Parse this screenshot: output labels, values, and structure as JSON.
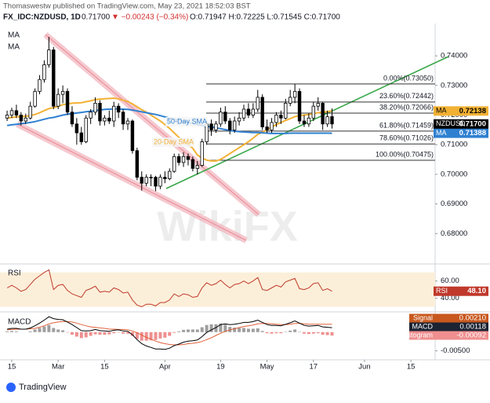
{
  "header": {
    "author": "Thomaswestw published on TradingView.com, May 23, 2021 18:52:03 BST",
    "symbol": "FX_IDC:NZDUSD, 1D",
    "last": "0.71700",
    "change": "▼ −0.00243 (−0.34%)",
    "ohlc_text": "O:0.71947  H:0.72225  L:0.71545  C:0.71700"
  },
  "footer": "TradingView",
  "watermark": "WikiFX",
  "chart_data": [
    {
      "type": "candlestick",
      "symbol": "NZDUSD",
      "up_color": "#ffffff",
      "down_color": "#000000",
      "x": [
        "2021-02-12",
        "2021-02-15",
        "2021-02-16",
        "2021-02-17",
        "2021-02-18",
        "2021-02-19",
        "2021-02-22",
        "2021-02-23",
        "2021-02-24",
        "2021-02-25",
        "2021-02-26",
        "2021-03-01",
        "2021-03-02",
        "2021-03-03",
        "2021-03-04",
        "2021-03-05",
        "2021-03-08",
        "2021-03-09",
        "2021-03-10",
        "2021-03-11",
        "2021-03-12",
        "2021-03-15",
        "2021-03-16",
        "2021-03-17",
        "2021-03-18",
        "2021-03-19",
        "2021-03-22",
        "2021-03-23",
        "2021-03-24",
        "2021-03-25",
        "2021-03-26",
        "2021-03-29",
        "2021-03-30",
        "2021-03-31",
        "2021-04-01",
        "2021-04-02",
        "2021-04-05",
        "2021-04-06",
        "2021-04-07",
        "2021-04-08",
        "2021-04-09",
        "2021-04-12",
        "2021-04-13",
        "2021-04-14",
        "2021-04-15",
        "2021-04-16",
        "2021-04-19",
        "2021-04-20",
        "2021-04-21",
        "2021-04-22",
        "2021-04-23",
        "2021-04-26",
        "2021-04-27",
        "2021-04-28",
        "2021-04-29",
        "2021-04-30",
        "2021-05-03",
        "2021-05-04",
        "2021-05-05",
        "2021-05-06",
        "2021-05-07",
        "2021-05-10",
        "2021-05-11",
        "2021-05-12",
        "2021-05-13",
        "2021-05-14",
        "2021-05-17",
        "2021-05-18",
        "2021-05-19",
        "2021-05-20",
        "2021-05-21"
      ],
      "ohlc": [
        [
          0.719,
          0.7215,
          0.718,
          0.72
        ],
        [
          0.72,
          0.7225,
          0.719,
          0.7215
        ],
        [
          0.7215,
          0.7235,
          0.719,
          0.72
        ],
        [
          0.72,
          0.721,
          0.7165,
          0.718
        ],
        [
          0.718,
          0.7205,
          0.717,
          0.719
        ],
        [
          0.719,
          0.7245,
          0.7185,
          0.723
        ],
        [
          0.723,
          0.729,
          0.7225,
          0.728
        ],
        [
          0.728,
          0.7335,
          0.727,
          0.732
        ],
        [
          0.732,
          0.7385,
          0.731,
          0.737
        ],
        [
          0.737,
          0.7464,
          0.736,
          0.742
        ],
        [
          0.742,
          0.743,
          0.722,
          0.723
        ],
        [
          0.723,
          0.729,
          0.722,
          0.727
        ],
        [
          0.727,
          0.73,
          0.724,
          0.728
        ],
        [
          0.728,
          0.729,
          0.72,
          0.721
        ],
        [
          0.721,
          0.723,
          0.716,
          0.717
        ],
        [
          0.717,
          0.719,
          0.71,
          0.714
        ],
        [
          0.714,
          0.716,
          0.71,
          0.711
        ],
        [
          0.711,
          0.72,
          0.7105,
          0.719
        ],
        [
          0.719,
          0.722,
          0.717,
          0.721
        ],
        [
          0.721,
          0.726,
          0.72,
          0.724
        ],
        [
          0.724,
          0.725,
          0.7165,
          0.718
        ],
        [
          0.718,
          0.72,
          0.7165,
          0.719
        ],
        [
          0.719,
          0.7215,
          0.717,
          0.718
        ],
        [
          0.718,
          0.7245,
          0.716,
          0.723
        ],
        [
          0.723,
          0.724,
          0.719,
          0.721
        ],
        [
          0.721,
          0.722,
          0.715,
          0.717
        ],
        [
          0.717,
          0.719,
          0.715,
          0.718
        ],
        [
          0.718,
          0.7185,
          0.707,
          0.708
        ],
        [
          0.708,
          0.709,
          0.698,
          0.699
        ],
        [
          0.699,
          0.701,
          0.6945,
          0.697
        ],
        [
          0.697,
          0.7,
          0.696,
          0.699
        ],
        [
          0.699,
          0.7,
          0.696,
          0.699
        ],
        [
          0.699,
          0.6995,
          0.6943,
          0.696
        ],
        [
          0.696,
          0.7,
          0.695,
          0.699
        ],
        [
          0.699,
          0.701,
          0.697,
          0.6985
        ],
        [
          0.6985,
          0.702,
          0.698,
          0.701
        ],
        [
          0.701,
          0.707,
          0.7005,
          0.706
        ],
        [
          0.706,
          0.707,
          0.703,
          0.704
        ],
        [
          0.704,
          0.7075,
          0.7025,
          0.706
        ],
        [
          0.706,
          0.707,
          0.703,
          0.705
        ],
        [
          0.705,
          0.706,
          0.701,
          0.702
        ],
        [
          0.702,
          0.7045,
          0.7,
          0.703
        ],
        [
          0.703,
          0.712,
          0.7025,
          0.711
        ],
        [
          0.711,
          0.718,
          0.71,
          0.717
        ],
        [
          0.717,
          0.7185,
          0.713,
          0.715
        ],
        [
          0.715,
          0.718,
          0.714,
          0.717
        ],
        [
          0.717,
          0.7225,
          0.716,
          0.721
        ],
        [
          0.721,
          0.723,
          0.717,
          0.718
        ],
        [
          0.718,
          0.719,
          0.7135,
          0.715
        ],
        [
          0.715,
          0.7195,
          0.714,
          0.718
        ],
        [
          0.718,
          0.721,
          0.7165,
          0.719
        ],
        [
          0.719,
          0.7235,
          0.718,
          0.722
        ],
        [
          0.722,
          0.724,
          0.719,
          0.72
        ],
        [
          0.72,
          0.724,
          0.719,
          0.722
        ],
        [
          0.722,
          0.7285,
          0.721,
          0.726
        ],
        [
          0.726,
          0.727,
          0.715,
          0.716
        ],
        [
          0.716,
          0.7185,
          0.714,
          0.715
        ],
        [
          0.715,
          0.719,
          0.714,
          0.7175
        ],
        [
          0.7175,
          0.721,
          0.716,
          0.72
        ],
        [
          0.72,
          0.7215,
          0.717,
          0.719
        ],
        [
          0.719,
          0.7255,
          0.7185,
          0.724
        ],
        [
          0.724,
          0.7285,
          0.723,
          0.726
        ],
        [
          0.726,
          0.7305,
          0.724,
          0.728
        ],
        [
          0.728,
          0.729,
          0.717,
          0.718
        ],
        [
          0.718,
          0.72,
          0.716,
          0.717
        ],
        [
          0.717,
          0.7205,
          0.716,
          0.719
        ],
        [
          0.719,
          0.7245,
          0.718,
          0.723
        ],
        [
          0.723,
          0.726,
          0.7215,
          0.724
        ],
        [
          0.724,
          0.7245,
          0.715,
          0.717
        ],
        [
          0.717,
          0.7215,
          0.716,
          0.71943
        ],
        [
          0.71947,
          0.72225,
          0.71545,
          0.717
        ]
      ],
      "series": [
        {
          "name": "MA",
          "color": "#f2b134",
          "values": [
            0.719,
            0.7192,
            0.7194,
            0.7195,
            0.7196,
            0.7198,
            0.7202,
            0.7208,
            0.7215,
            0.7222,
            0.7225,
            0.723,
            0.7235,
            0.7238,
            0.724,
            0.7241,
            0.7242,
            0.7245,
            0.7248,
            0.7252,
            0.7254,
            0.7255,
            0.7256,
            0.7257,
            0.7255,
            0.725,
            0.7246,
            0.7238,
            0.7228,
            0.7218,
            0.721,
            0.72,
            0.719,
            0.718,
            0.7168,
            0.7155,
            0.714,
            0.7125,
            0.7112,
            0.71,
            0.7088,
            0.7065,
            0.7055,
            0.7048,
            0.7045,
            0.7045,
            0.705,
            0.706,
            0.707,
            0.708,
            0.709,
            0.71,
            0.711,
            0.7122,
            0.7135,
            0.7142,
            0.715,
            0.716,
            0.7168,
            0.7175,
            0.7182,
            0.7188,
            0.7195,
            0.7198,
            0.72,
            0.7202,
            0.7205,
            0.7208,
            0.721,
            0.7212,
            0.72138
          ]
        },
        {
          "name": "MA",
          "color": "#2f80d1",
          "values": [
            0.7165,
            0.7167,
            0.7169,
            0.7171,
            0.7173,
            0.7175,
            0.7178,
            0.7182,
            0.7186,
            0.719,
            0.7192,
            0.7196,
            0.72,
            0.7203,
            0.7205,
            0.7207,
            0.7209,
            0.7211,
            0.7213,
            0.7215,
            0.7217,
            0.7219,
            0.722,
            0.7221,
            0.7221,
            0.722,
            0.7219,
            0.7217,
            0.7214,
            0.7211,
            0.7208,
            0.7205,
            0.7202,
            0.7198,
            0.7194,
            0.719,
            0.7186,
            0.7182,
            0.7178,
            0.7175,
            0.7172,
            0.7168,
            0.7165,
            0.7162,
            0.716,
            0.7157,
            0.7154,
            0.7151,
            0.7148,
            0.7146,
            0.7144,
            0.7143,
            0.7142,
            0.7141,
            0.7141,
            0.714,
            0.7139,
            0.7138,
            0.7138,
            0.7138,
            0.7138,
            0.7139,
            0.7139,
            0.7139,
            0.7139,
            0.7139,
            0.7139,
            0.7139,
            0.7139,
            0.7139,
            0.71388
          ]
        }
      ],
      "price_label": {
        "value": 0.717,
        "label": "0.71700"
      },
      "fib_levels": [
        {
          "value": 0.7305,
          "label": "0.00%(0.73050)"
        },
        {
          "value": 0.72442,
          "label": "23.60%(0.72442)"
        },
        {
          "value": 0.72066,
          "label": "38.20%(0.72066)"
        },
        {
          "value": 0.71459,
          "label": "61.80%(0.71459)"
        },
        {
          "value": 0.71026,
          "label": "78.60%(0.71026)"
        },
        {
          "value": 0.70475,
          "label": "100.00%(0.70475)"
        }
      ],
      "annotations": [
        "50-Day SMA",
        "20-Day SMA"
      ],
      "ylim": [
        0.67,
        0.7509
      ],
      "yticks": [
        {
          "value": 0.68,
          "label": "0.68000"
        },
        {
          "value": 0.69,
          "label": "0.69000"
        },
        {
          "value": 0.7,
          "label": "0.70000"
        },
        {
          "value": 0.71,
          "label": "0.71000"
        },
        {
          "value": 0.72,
          "label": "0.72000"
        },
        {
          "value": 0.73,
          "label": "0.73000"
        },
        {
          "value": 0.74,
          "label": "0.74000"
        }
      ],
      "xticks": [
        {
          "value": "2021-02-15",
          "label": "15"
        },
        {
          "value": "2021-03-01",
          "label": "Mar"
        },
        {
          "value": "2021-03-15",
          "label": "15"
        },
        {
          "value": "2021-04-01",
          "label": "Apr"
        },
        {
          "value": "2021-04-19",
          "label": "19"
        },
        {
          "value": "2021-05-03",
          "label": "May"
        },
        {
          "value": "2021-05-17",
          "label": "17"
        },
        {
          "value": "2021-06-01",
          "label": "Jun"
        },
        {
          "value": "2021-06-15",
          "label": "15"
        }
      ],
      "grid": false
    },
    {
      "type": "line",
      "title": "RSI",
      "color": "#c0392b",
      "band": [
        30,
        70
      ],
      "band_color": "#fcefd9",
      "values": [
        52,
        55,
        52,
        48,
        50,
        56,
        62,
        66,
        70,
        73,
        50,
        55,
        56,
        49,
        45,
        43,
        41,
        49,
        51,
        54,
        47,
        48,
        47,
        52,
        50,
        46,
        47,
        38,
        32,
        30,
        33,
        33,
        31,
        35,
        35,
        38,
        45,
        42,
        45,
        44,
        41,
        42,
        52,
        58,
        55,
        57,
        61,
        56,
        52,
        56,
        57,
        60,
        57,
        60,
        64,
        50,
        49,
        52,
        55,
        53,
        59,
        61,
        63,
        51,
        50,
        52,
        57,
        58,
        49,
        51,
        48.1
      ],
      "last_label": "48.10",
      "ylim": [
        25,
        78
      ],
      "yticks": [
        {
          "value": 40,
          "label": "40.00"
        },
        {
          "value": 60,
          "label": "60.00"
        }
      ]
    },
    {
      "type": "line",
      "title": "MACD",
      "series": [
        {
          "name": "Signal",
          "color": "#e0603a",
          "values": [
            0.0006,
            0.0007,
            0.0008,
            0.0008,
            0.0008,
            0.0009,
            0.001,
            0.0013,
            0.0017,
            0.0022,
            0.0025,
            0.0027,
            0.0028,
            0.0028,
            0.0027,
            0.0024,
            0.002,
            0.0017,
            0.0014,
            0.0013,
            0.0011,
            0.001,
            0.0008,
            0.0008,
            0.0007,
            0.0007,
            0.0006,
            0.0003,
            -0.0002,
            -0.0008,
            -0.0014,
            -0.0019,
            -0.0024,
            -0.0028,
            -0.0031,
            -0.0033,
            -0.0034,
            -0.0034,
            -0.0033,
            -0.0031,
            -0.003,
            -0.0028,
            -0.0025,
            -0.002,
            -0.0015,
            -0.0009,
            -0.0003,
            0.0002,
            0.0006,
            0.0009,
            0.0012,
            0.0015,
            0.0017,
            0.0019,
            0.0022,
            0.0023,
            0.0023,
            0.0022,
            0.0021,
            0.002,
            0.002,
            0.0021,
            0.0023,
            0.0023,
            0.0022,
            0.0021,
            0.0021,
            0.0021,
            0.0021,
            0.0021,
            0.0021
          ],
          "label_color": "#c8581e",
          "last_label": "0.00210"
        },
        {
          "name": "MACD",
          "color": "#000000",
          "values": [
            0.0008,
            0.001,
            0.001,
            0.0008,
            0.0008,
            0.0011,
            0.0017,
            0.0024,
            0.0032,
            0.0041,
            0.0036,
            0.0034,
            0.0033,
            0.0027,
            0.002,
            0.0012,
            0.0004,
            0.0003,
            0.0004,
            0.0007,
            0.0004,
            0.0003,
            0.0002,
            0.0005,
            0.0006,
            0.0003,
            0.0002,
            -0.0007,
            -0.002,
            -0.0031,
            -0.0037,
            -0.0041,
            -0.0045,
            -0.0045,
            -0.0046,
            -0.0043,
            -0.0036,
            -0.0032,
            -0.0027,
            -0.0024,
            -0.0023,
            -0.0021,
            -0.0012,
            -0.0001,
            0.0006,
            0.0012,
            0.002,
            0.0022,
            0.002,
            0.0021,
            0.0023,
            0.0026,
            0.0026,
            0.0028,
            0.0032,
            0.0026,
            0.002,
            0.0018,
            0.0018,
            0.0017,
            0.0021,
            0.0025,
            0.003,
            0.0024,
            0.0018,
            0.0016,
            0.0017,
            0.0018,
            0.0014,
            0.0013,
            0.00118
          ],
          "label_color": "#1c2333"
        },
        {
          "name": "Histogram",
          "type": "bar",
          "color": "#9e9e9e",
          "down_color": "#ef8f8f",
          "values": [
            0.0002,
            0.0003,
            0.0002,
            0,
            0,
            0.0002,
            0.0007,
            0.0011,
            0.0015,
            0.0019,
            0.0011,
            0.0007,
            0.0005,
            -0.0001,
            -0.0007,
            -0.0012,
            -0.0016,
            -0.0014,
            -0.001,
            -0.0006,
            -0.0007,
            -0.0007,
            -0.0006,
            -0.0003,
            -0.0001,
            -0.0004,
            -0.0004,
            -0.001,
            -0.0018,
            -0.0023,
            -0.0023,
            -0.0022,
            -0.0021,
            -0.0017,
            -0.0015,
            -0.001,
            -0.0002,
            0.0002,
            0.0006,
            0.0007,
            0.0007,
            0.0007,
            0.0013,
            0.0019,
            0.0021,
            0.0021,
            0.0023,
            0.002,
            0.0014,
            0.0012,
            0.0011,
            0.0011,
            0.0009,
            0.0009,
            0.001,
            0.0003,
            -0.0003,
            -0.0004,
            -0.0003,
            -0.0003,
            0.0001,
            0.0004,
            0.0007,
            0.0001,
            -0.0004,
            -0.0005,
            -0.0004,
            -0.0003,
            -0.0007,
            -0.0008,
            -0.00092
          ],
          "label_color": "#ef8f8f"
        }
      ],
      "ylim": [
        -0.0074,
        0.0052
      ],
      "yticks": [
        {
          "value": -0.005,
          "label": "-0.00500"
        }
      ]
    }
  ]
}
